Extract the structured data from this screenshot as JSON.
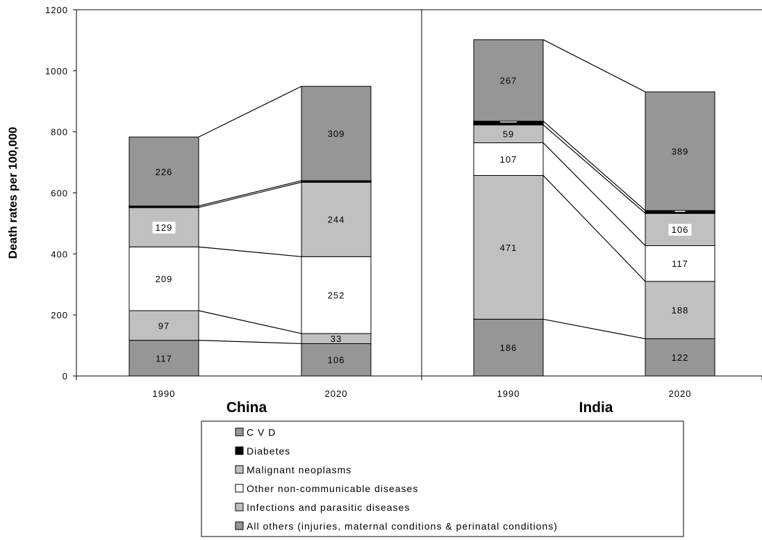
{
  "chart_data": {
    "type": "bar",
    "stacked": true,
    "ylabel": "Death rates per 100,000",
    "ylim": [
      0,
      1200
    ],
    "yticks": [
      0,
      200,
      400,
      600,
      800,
      1000,
      1200
    ],
    "groups": [
      {
        "name": "China",
        "categories": [
          "1990",
          "2020"
        ]
      },
      {
        "name": "India",
        "categories": [
          "1990",
          "2020"
        ]
      }
    ],
    "series": [
      {
        "name": "All others (injuries, maternal conditions & perinatal conditions)",
        "color": "#969696",
        "values": [
          226,
          309,
          267,
          389
        ]
      },
      {
        "name": "Diabetes",
        "color": "#000000",
        "values": [
          5,
          5,
          12,
          9
        ]
      },
      {
        "name": "Malignant neoplasms",
        "color": "#c0c0c0",
        "values": [
          129,
          244,
          59,
          106
        ]
      },
      {
        "name": "Other non-communicable diseases",
        "color": "#ffffff",
        "values": [
          209,
          252,
          107,
          117
        ]
      },
      {
        "name": "Infections and parasitic diseases",
        "color": "#c0c0c0",
        "values": [
          97,
          33,
          471,
          188
        ]
      },
      {
        "name": "C V D",
        "color": "#969696",
        "values": [
          117,
          106,
          186,
          122
        ]
      }
    ],
    "legend": {
      "placement": "bottom",
      "entries": [
        {
          "label": "C V D",
          "color": "#969696"
        },
        {
          "label": "Diabetes",
          "color": "#000000"
        },
        {
          "label": "Malignant neoplasms",
          "color": "#c0c0c0"
        },
        {
          "label": "Other non-communicable diseases",
          "color": "#ffffff"
        },
        {
          "label": "Infections and parasitic diseases",
          "color": "#c0c0c0"
        },
        {
          "label": "All others (injuries, maternal conditions & perinatal conditions)",
          "color": "#969696"
        }
      ]
    },
    "grid": false
  }
}
